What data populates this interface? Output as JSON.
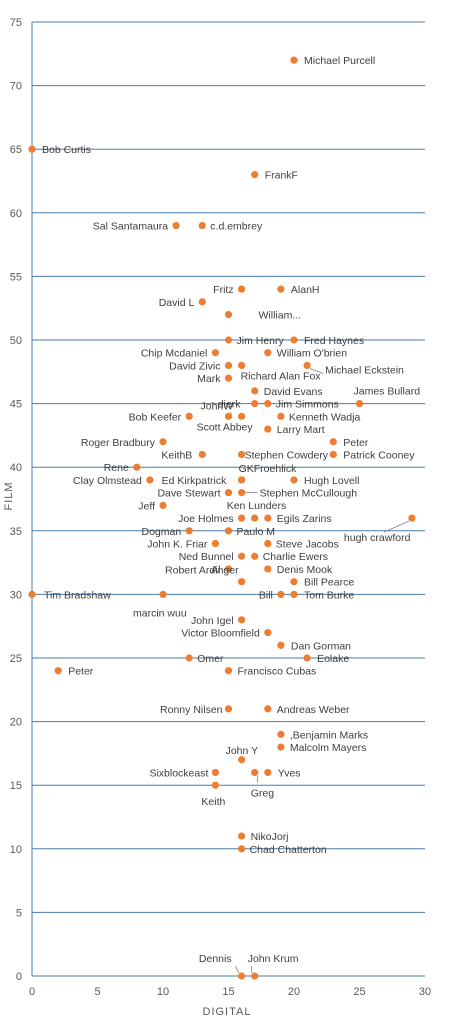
{
  "chart_data": {
    "type": "scatter",
    "xlabel": "DIGITAL",
    "ylabel": "FILM",
    "xlim": [
      0,
      30
    ],
    "ylim": [
      0,
      75
    ],
    "x_ticks": [
      0,
      5,
      10,
      15,
      20,
      25,
      30
    ],
    "y_ticks": [
      0,
      5,
      10,
      15,
      20,
      25,
      30,
      35,
      40,
      45,
      50,
      55,
      60,
      65,
      70,
      75
    ],
    "grid": "horizontal",
    "marker_color": "#ed7d31",
    "points": [
      {
        "label": "Michael Purcell",
        "x": 20,
        "y": 72
      },
      {
        "label": "Bob Curtis",
        "x": 0,
        "y": 65
      },
      {
        "label": "FrankF",
        "x": 17,
        "y": 63
      },
      {
        "label": "Sal Santamaura",
        "x": 11,
        "y": 59
      },
      {
        "label": "c.d.embrey",
        "x": 13,
        "y": 59
      },
      {
        "label": "Fritz",
        "x": 16,
        "y": 54
      },
      {
        "label": "AlanH",
        "x": 19,
        "y": 54
      },
      {
        "label": "David L",
        "x": 13,
        "y": 53
      },
      {
        "label": "William...",
        "x": 15,
        "y": 52
      },
      {
        "label": "Jim Henry",
        "x": 15,
        "y": 50
      },
      {
        "label": "Fred Haynes",
        "x": 20,
        "y": 50
      },
      {
        "label": "Chip Mcdaniel",
        "x": 14,
        "y": 49
      },
      {
        "label": "William O'brien",
        "x": 18,
        "y": 49
      },
      {
        "label": "David Zivic",
        "x": 15,
        "y": 48
      },
      {
        "label": "Richard Alan Fox",
        "x": 16,
        "y": 48
      },
      {
        "label": "Michael Eckstein",
        "x": 21,
        "y": 48
      },
      {
        "label": "Mark",
        "x": 15,
        "y": 47
      },
      {
        "label": "David Evans",
        "x": 17,
        "y": 46
      },
      {
        "label": "James Bullard",
        "x": 25,
        "y": 45
      },
      {
        "label": "dierk",
        "x": 17,
        "y": 45
      },
      {
        "label": "Jim Simmons",
        "x": 18,
        "y": 45
      },
      {
        "label": "JohnW",
        "x": 15,
        "y": 44
      },
      {
        "label": "Bob Keefer",
        "x": 12,
        "y": 44
      },
      {
        "label": "Kenneth Wadja",
        "x": 19,
        "y": 44
      },
      {
        "label": "Scott Abbey",
        "x": 16,
        "y": 44
      },
      {
        "label": "Larry Mart",
        "x": 18,
        "y": 43
      },
      {
        "label": "Roger Bradbury",
        "x": 10,
        "y": 42
      },
      {
        "label": "Peter",
        "x": 23,
        "y": 42
      },
      {
        "label": "KeithB",
        "x": 13,
        "y": 41
      },
      {
        "label": "Stephen Cowdery",
        "x": 16,
        "y": 41
      },
      {
        "label": "Patrick Cooney",
        "x": 23,
        "y": 41
      },
      {
        "label": "Rene",
        "x": 8,
        "y": 40
      },
      {
        "label": "GKFroehlick",
        "x": 16,
        "y": 39
      },
      {
        "label": "Clay Olmstead",
        "x": 9,
        "y": 39
      },
      {
        "label": "Ed Kirkpatrick",
        "x": 16,
        "y": 39
      },
      {
        "label": "Hugh Lovell",
        "x": 20,
        "y": 39
      },
      {
        "label": "Dave Stewart",
        "x": 15,
        "y": 38
      },
      {
        "label": "Stephen McCullough",
        "x": 16,
        "y": 38
      },
      {
        "label": "Jeff",
        "x": 10,
        "y": 37
      },
      {
        "label": "Ken Lunders",
        "x": 17,
        "y": 36
      },
      {
        "label": "Joe Holmes",
        "x": 16,
        "y": 36
      },
      {
        "label": "Egils Zarins",
        "x": 18,
        "y": 36
      },
      {
        "label": "hugh crawford",
        "x": 29,
        "y": 36
      },
      {
        "label": "Dogman",
        "x": 12,
        "y": 35
      },
      {
        "label": "Paulo M",
        "x": 15,
        "y": 35
      },
      {
        "label": "John K. Friar",
        "x": 14,
        "y": 34
      },
      {
        "label": "Steve Jacobs",
        "x": 18,
        "y": 34
      },
      {
        "label": "Ned Bunnel",
        "x": 16,
        "y": 33
      },
      {
        "label": "Charlie Ewers",
        "x": 17,
        "y": 33
      },
      {
        "label": "Al",
        "x": 15,
        "y": 32
      },
      {
        "label": "Denis Mook",
        "x": 18,
        "y": 32
      },
      {
        "label": "Robert Ardinger",
        "x": 16,
        "y": 31
      },
      {
        "label": "Bill Pearce",
        "x": 20,
        "y": 31
      },
      {
        "label": "Tim Bradshaw",
        "x": 0,
        "y": 30
      },
      {
        "label": "marcin wuu",
        "x": 10,
        "y": 30
      },
      {
        "label": "Bill",
        "x": 19,
        "y": 30
      },
      {
        "label": "Tom Burke",
        "x": 20,
        "y": 30
      },
      {
        "label": "John Igel",
        "x": 16,
        "y": 28
      },
      {
        "label": "Victor Bloomfield",
        "x": 18,
        "y": 27
      },
      {
        "label": "Dan Gorman",
        "x": 19,
        "y": 26
      },
      {
        "label": "Omer",
        "x": 12,
        "y": 25
      },
      {
        "label": "Eolake",
        "x": 21,
        "y": 25
      },
      {
        "label": "Peter",
        "x": 2,
        "y": 24
      },
      {
        "label": "Francisco Cubas",
        "x": 15,
        "y": 24
      },
      {
        "label": "Ronny Nilsen",
        "x": 15,
        "y": 21
      },
      {
        "label": "Andreas Weber",
        "x": 18,
        "y": 21
      },
      {
        "label": ",Benjamin Marks",
        "x": 19,
        "y": 19
      },
      {
        "label": "Malcolm Mayers",
        "x": 19,
        "y": 18
      },
      {
        "label": "John Y",
        "x": 16,
        "y": 17
      },
      {
        "label": "Sixblockeast",
        "x": 14,
        "y": 16
      },
      {
        "label": "Greg",
        "x": 17,
        "y": 16
      },
      {
        "label": "Yves",
        "x": 18,
        "y": 16
      },
      {
        "label": "Keith",
        "x": 14,
        "y": 15
      },
      {
        "label": "NikoJorj",
        "x": 16,
        "y": 11
      },
      {
        "label": "Chad Chatterton",
        "x": 16,
        "y": 10
      },
      {
        "label": "Dennis",
        "x": 16,
        "y": 0
      },
      {
        "label": "John Krum",
        "x": 17,
        "y": 0
      }
    ]
  }
}
